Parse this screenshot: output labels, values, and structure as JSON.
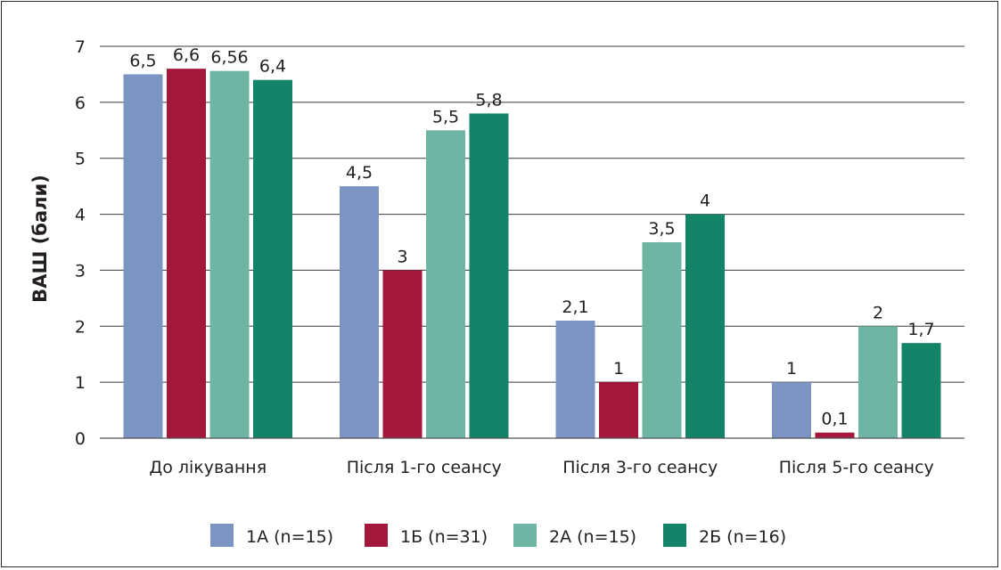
{
  "chart_data": {
    "type": "bar",
    "ylabel": "ВАШ (бали)",
    "xlabel": "",
    "title": "",
    "ylim": [
      0,
      7
    ],
    "yticks": [
      "0",
      "1",
      "2",
      "3",
      "4",
      "5",
      "6",
      "7"
    ],
    "grid": true,
    "legend": "bottom",
    "categories": [
      "До лікування",
      "Після 1-го сеансу",
      "Після 3-го сеансу",
      "Після 5-го сеансу"
    ],
    "series": [
      {
        "name": "1А (n=15)",
        "color": "#7b94c2",
        "values": [
          6.5,
          4.5,
          2.1,
          1
        ],
        "labels": [
          "6,5",
          "4,5",
          "2,1",
          "1"
        ]
      },
      {
        "name": "1Б (n=31)",
        "color": "#a3173a",
        "values": [
          6.6,
          3,
          1,
          0.1
        ],
        "labels": [
          "6,6",
          "3",
          "1",
          "0,1"
        ]
      },
      {
        "name": "2А (n=15)",
        "color": "#6fb5a4",
        "values": [
          6.56,
          5.5,
          3.5,
          2
        ],
        "labels": [
          "6,56",
          "5,5",
          "3,5",
          "2"
        ]
      },
      {
        "name": "2Б (n=16)",
        "color": "#138468",
        "values": [
          6.4,
          5.8,
          4,
          1.7
        ],
        "labels": [
          "6,4",
          "5,8",
          "4",
          "1,7"
        ]
      }
    ]
  }
}
